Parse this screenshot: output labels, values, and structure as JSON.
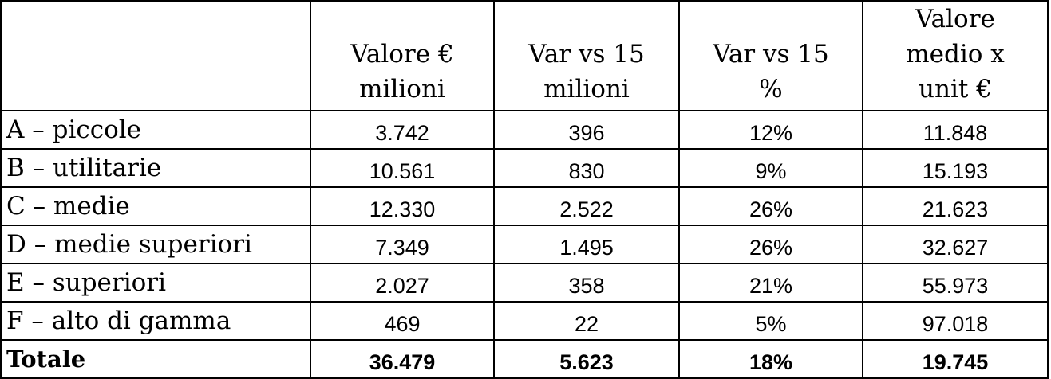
{
  "table": {
    "headers": [
      {
        "lines": [
          ""
        ]
      },
      {
        "lines": [
          "Valore €",
          "milioni"
        ]
      },
      {
        "lines": [
          "Var vs 15",
          "milioni"
        ]
      },
      {
        "lines": [
          "Var vs 15",
          "%"
        ]
      },
      {
        "lines": [
          "Valore",
          "medio x",
          "unit €"
        ]
      }
    ],
    "rows": [
      {
        "label": "A – piccole",
        "cells": [
          "3.742",
          "396",
          "12%",
          "11.848"
        ]
      },
      {
        "label": "B – utilitarie",
        "cells": [
          "10.561",
          "830",
          "9%",
          "15.193"
        ]
      },
      {
        "label": "C – medie",
        "cells": [
          "12.330",
          "2.522",
          "26%",
          "21.623"
        ]
      },
      {
        "label": "D – medie superiori",
        "cells": [
          "7.349",
          "1.495",
          "26%",
          "32.627"
        ]
      },
      {
        "label": "E – superiori",
        "cells": [
          "2.027",
          "358",
          "21%",
          "55.973"
        ]
      },
      {
        "label": "F – alto di gamma",
        "cells": [
          "469",
          "22",
          "5%",
          "97.018"
        ]
      }
    ],
    "total": {
      "label": "Totale",
      "cells": [
        "36.479",
        "5.623",
        "18%",
        "19.745"
      ]
    }
  }
}
